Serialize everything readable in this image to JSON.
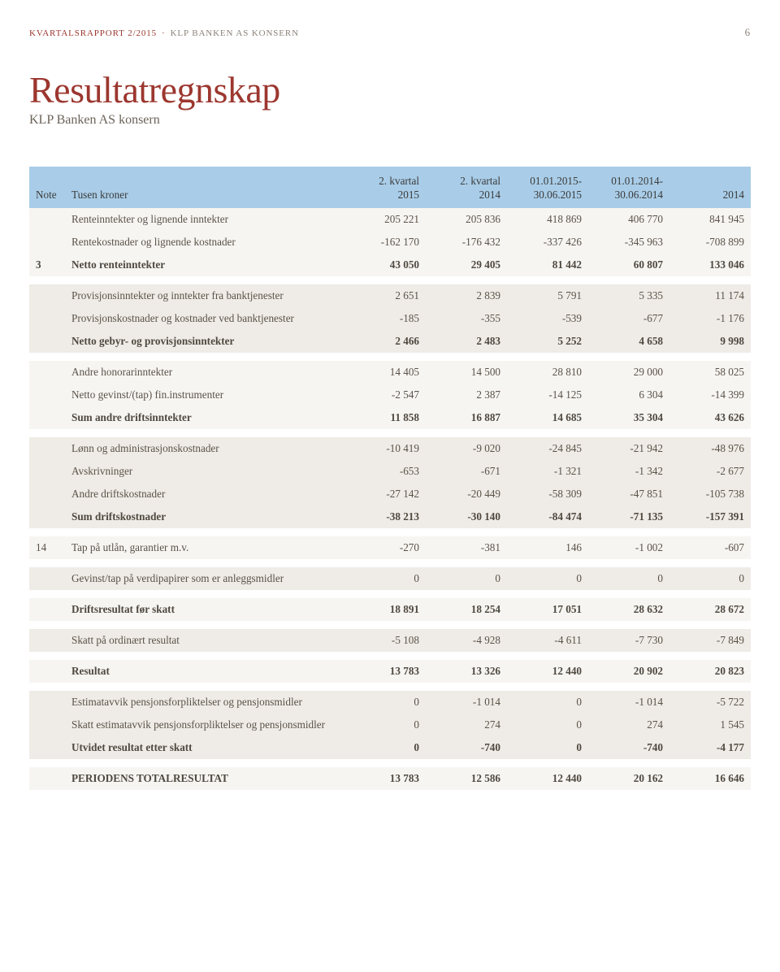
{
  "report_header": {
    "left_red": "KVARTALSRAPPORT 2/2015",
    "dot": "·",
    "left_grey": "KLP BANKEN AS KONSERN",
    "page_number": "6"
  },
  "title": "Resultatregnskap",
  "subtitle": "KLP Banken AS konsern",
  "columns": {
    "note": "Note",
    "label": "Tusen kroner",
    "c1": "2. kvartal\n2015",
    "c2": "2. kvartal\n2014",
    "c3": "01.01.2015-\n30.06.2015",
    "c4": "01.01.2014-\n30.06.2014",
    "c5": "2014"
  },
  "groups": [
    {
      "band": "light",
      "rows": [
        {
          "note": "",
          "label": "Renteinntekter og lignende inntekter",
          "v": [
            "205 221",
            "205 836",
            "418 869",
            "406 770",
            "841 945"
          ],
          "bold": false
        },
        {
          "note": "",
          "label": "Rentekostnader og lignende kostnader",
          "v": [
            "-162 170",
            "-176 432",
            "-337 426",
            "-345 963",
            "-708 899"
          ],
          "bold": false
        },
        {
          "note": "3",
          "label": "Netto renteinntekter",
          "v": [
            "43 050",
            "29 405",
            "81 442",
            "60 807",
            "133 046"
          ],
          "bold": true
        }
      ]
    },
    {
      "band": "dark",
      "rows": [
        {
          "note": "",
          "label": "Provisjonsinntekter og inntekter fra banktjenester",
          "v": [
            "2 651",
            "2 839",
            "5 791",
            "5 335",
            "11 174"
          ],
          "bold": false
        },
        {
          "note": "",
          "label": "Provisjonskostnader og kostnader ved banktjenester",
          "v": [
            "-185",
            "-355",
            "-539",
            "-677",
            "-1 176"
          ],
          "bold": false
        },
        {
          "note": "",
          "label": "Netto gebyr- og provisjonsinntekter",
          "v": [
            "2 466",
            "2 483",
            "5 252",
            "4 658",
            "9 998"
          ],
          "bold": true
        }
      ]
    },
    {
      "band": "light",
      "rows": [
        {
          "note": "",
          "label": "Andre honorarinntekter",
          "v": [
            "14 405",
            "14 500",
            "28 810",
            "29 000",
            "58 025"
          ],
          "bold": false
        },
        {
          "note": "",
          "label": "Netto gevinst/(tap) fin.instrumenter",
          "v": [
            "-2 547",
            "2 387",
            "-14 125",
            "6 304",
            "-14 399"
          ],
          "bold": false
        },
        {
          "note": "",
          "label": "Sum andre driftsinntekter",
          "v": [
            "11 858",
            "16 887",
            "14 685",
            "35 304",
            "43 626"
          ],
          "bold": true
        }
      ]
    },
    {
      "band": "dark",
      "rows": [
        {
          "note": "",
          "label": "Lønn og administrasjonskostnader",
          "v": [
            "-10 419",
            "-9 020",
            "-24 845",
            "-21 942",
            "-48 976"
          ],
          "bold": false
        },
        {
          "note": "",
          "label": "Avskrivninger",
          "v": [
            "-653",
            "-671",
            "-1 321",
            "-1 342",
            "-2 677"
          ],
          "bold": false
        },
        {
          "note": "",
          "label": "Andre driftskostnader",
          "v": [
            "-27 142",
            "-20 449",
            "-58 309",
            "-47 851",
            "-105 738"
          ],
          "bold": false
        },
        {
          "note": "",
          "label": "Sum driftskostnader",
          "v": [
            "-38 213",
            "-30 140",
            "-84 474",
            "-71 135",
            "-157 391"
          ],
          "bold": true
        }
      ]
    },
    {
      "band": "light",
      "rows": [
        {
          "note": "14",
          "label": "Tap på utlån, garantier m.v.",
          "v": [
            "-270",
            "-381",
            "146",
            "-1 002",
            "-607"
          ],
          "bold": false
        }
      ]
    },
    {
      "band": "dark",
      "rows": [
        {
          "note": "",
          "label": "Gevinst/tap på verdipapirer som er anleggsmidler",
          "v": [
            "0",
            "0",
            "0",
            "0",
            "0"
          ],
          "bold": false
        }
      ]
    },
    {
      "band": "light",
      "rows": [
        {
          "note": "",
          "label": "Driftsresultat før skatt",
          "v": [
            "18 891",
            "18 254",
            "17 051",
            "28 632",
            "28 672"
          ],
          "bold": true
        }
      ]
    },
    {
      "band": "dark",
      "rows": [
        {
          "note": "",
          "label": "Skatt på ordinært resultat",
          "v": [
            "-5 108",
            "-4 928",
            "-4 611",
            "-7 730",
            "-7 849"
          ],
          "bold": false
        }
      ]
    },
    {
      "band": "light",
      "rows": [
        {
          "note": "",
          "label": "Resultat",
          "v": [
            "13 783",
            "13 326",
            "12 440",
            "20 902",
            "20 823"
          ],
          "bold": true
        }
      ]
    },
    {
      "band": "dark",
      "rows": [
        {
          "note": "",
          "label": "Estimatavvik pensjonsforpliktelser og pensjonsmidler",
          "v": [
            "0",
            "-1 014",
            "0",
            "-1 014",
            "-5 722"
          ],
          "bold": false
        },
        {
          "note": "",
          "label": "Skatt estimatavvik pensjonsforpliktelser og pensjonsmidler",
          "v": [
            "0",
            "274",
            "0",
            "274",
            "1 545"
          ],
          "bold": false
        },
        {
          "note": "",
          "label": "Utvidet resultat etter skatt",
          "v": [
            "0",
            "-740",
            "0",
            "-740",
            "-4 177"
          ],
          "bold": true
        }
      ]
    },
    {
      "band": "light",
      "rows": [
        {
          "note": "",
          "label": "PERIODENS TOTALRESULTAT",
          "v": [
            "13 783",
            "12 586",
            "12 440",
            "20 162",
            "16 646"
          ],
          "bold": true
        }
      ]
    }
  ],
  "style": {
    "header_bg": "#a9cde8",
    "band_light": "#f7f5f2",
    "band_dark": "#efece7",
    "text_color": "#5a5248",
    "accent_red": "#9c372f"
  }
}
